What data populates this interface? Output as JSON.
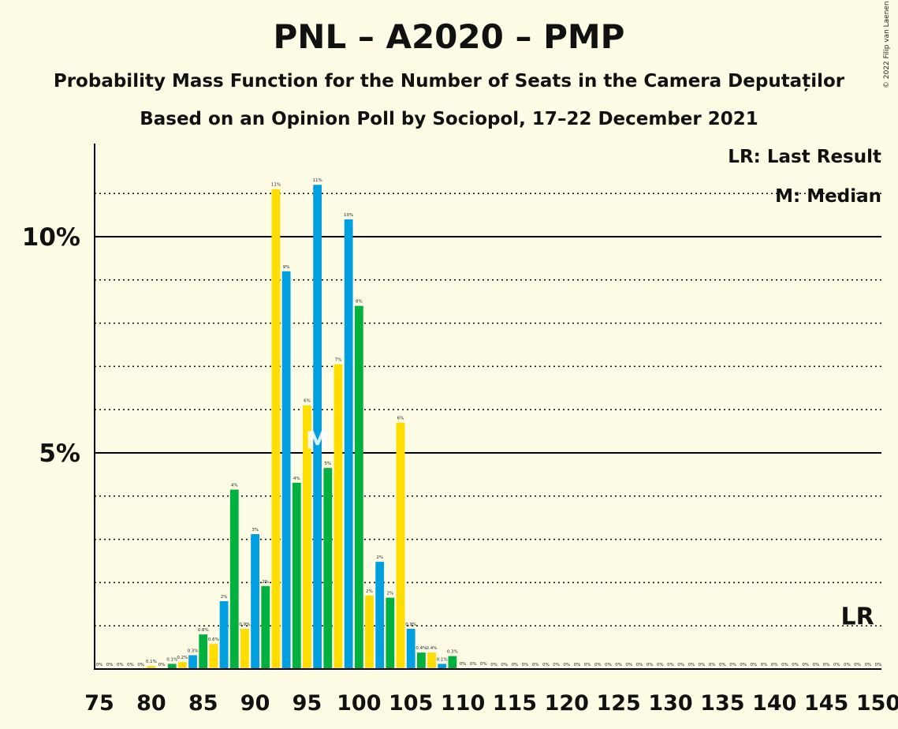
{
  "header": {
    "title": "PNL – A2020 – PMP",
    "subtitle": "Probability Mass Function for the Number of Seats in the Camera Deputaților",
    "subtitle2": "Based on an Opinion Poll by Sociopol, 17–22 December 2021",
    "copyright": "© 2022 Filip van Laenen"
  },
  "legend": {
    "lr": "LR: Last Result",
    "median": "M: Median"
  },
  "colors": {
    "background": "#FFFCE6",
    "blue": "#00A0E0",
    "green": "#00B140",
    "yellow": "#FFDD00",
    "axis": "#000000"
  },
  "chart_data": {
    "type": "bar",
    "x": [
      75,
      76,
      77,
      78,
      79,
      80,
      81,
      82,
      83,
      84,
      85,
      86,
      87,
      88,
      89,
      90,
      91,
      92,
      93,
      94,
      95,
      96,
      97,
      98,
      99,
      100,
      101,
      102,
      103,
      104,
      105,
      106,
      107,
      108,
      109,
      110,
      111,
      112,
      113,
      114,
      115,
      116,
      117,
      118,
      119,
      120,
      121,
      122,
      123,
      124,
      125,
      126,
      127,
      128,
      129,
      130,
      131,
      132,
      133,
      134,
      135,
      136,
      137,
      138,
      139,
      140,
      141,
      142,
      143,
      144,
      145,
      146,
      147,
      148,
      149,
      150
    ],
    "values": [
      0,
      0,
      0,
      0,
      0,
      0.07,
      0,
      0.12,
      0.16,
      0.32,
      0.8,
      0.58,
      1.57,
      4.15,
      0.93,
      3.12,
      1.92,
      11.1,
      9.2,
      4.31,
      6.1,
      11.2,
      4.65,
      7.05,
      10.4,
      8.4,
      1.7,
      2.48,
      1.65,
      5.7,
      0.93,
      0.38,
      0.38,
      0.12,
      0.3,
      0.02,
      0.02,
      0.02,
      0,
      0,
      0,
      0,
      0,
      0,
      0,
      0,
      0,
      0,
      0,
      0,
      0,
      0,
      0,
      0,
      0,
      0,
      0,
      0,
      0,
      0,
      0,
      0,
      0,
      0,
      0,
      0,
      0,
      0,
      0,
      0,
      0,
      0,
      0,
      0,
      0,
      0
    ],
    "bar_labels": [
      "0%",
      "0%",
      "0%",
      "0%",
      "0%",
      "0.1%",
      "0%",
      "0.1%",
      "0.2%",
      "0.3%",
      "0.8%",
      "0.6%",
      "2%",
      "4%",
      "0.9%",
      "3%",
      "2%",
      "11%",
      "9%",
      "4%",
      "6%",
      "11%",
      "5%",
      "7%",
      "10%",
      "8%",
      "2%",
      "2%",
      "2%",
      "6%",
      "0.9%",
      "0.4%",
      "0.4%",
      "0.1%",
      "0.3%",
      "0%",
      "0%",
      "0%",
      "0%",
      "0%",
      "0%",
      "0%",
      "0%",
      "0%",
      "0%",
      "0%",
      "0%",
      "0%",
      "0%",
      "0%",
      "0%",
      "0%",
      "0%",
      "0%",
      "0%",
      "0%",
      "0%",
      "0%",
      "0%",
      "0%",
      "0%",
      "0%",
      "0%",
      "0%",
      "0%",
      "0%",
      "0%",
      "0%",
      "0%",
      "0%",
      "0%",
      "0%",
      "0%",
      "0%",
      "0%",
      "0%"
    ],
    "color_cycle": [
      "blue",
      "green",
      "yellow"
    ],
    "x_tick_labels": [
      "75",
      "80",
      "85",
      "90",
      "95",
      "100",
      "105",
      "110",
      "115",
      "120",
      "125",
      "130",
      "135",
      "140",
      "145",
      "150"
    ],
    "y_tick_labels": [
      {
        "value": 5,
        "label": "5%"
      },
      {
        "value": 10,
        "label": "10%"
      }
    ],
    "ylim": [
      0,
      12
    ],
    "median": 96,
    "median_label": "M",
    "last_result": 148,
    "last_result_label": "LR",
    "grid": "dotted every 1%, solid at 5% and 10%"
  }
}
